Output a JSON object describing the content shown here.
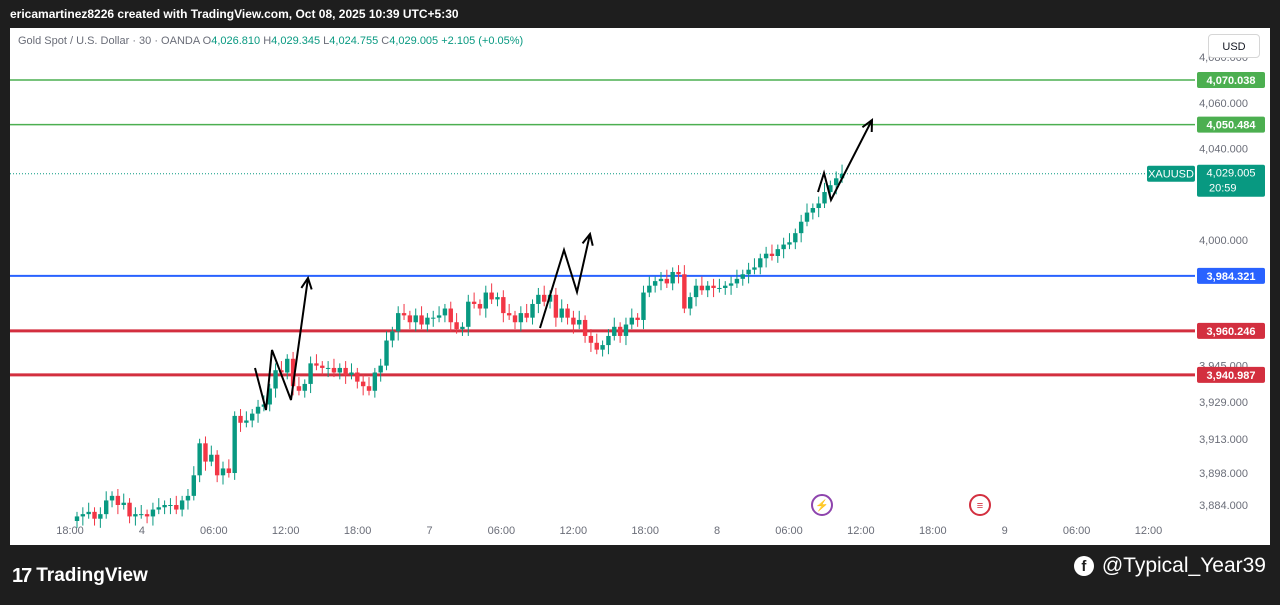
{
  "header": {
    "caption": "ericamartinez8226 created with TradingView.com, Oct 08, 2025 10:39 UTC+5:30"
  },
  "legend": {
    "symbol": "Gold Spot / U.S. Dollar · 30 · OANDA",
    "o_label": "O",
    "o_value": "4,026.810",
    "h_label": "H",
    "h_value": "4,029.345",
    "l_label": "L",
    "l_value": "4,024.755",
    "c_label": "C",
    "c_value": "4,029.005",
    "change": "+2.105 (+0.05%)"
  },
  "currency_button": "USD",
  "footer": {
    "brand_mark": "17",
    "brand": "TradingView",
    "handle": "@Typical_Year39"
  },
  "colors": {
    "up": "#089981",
    "down": "#f23645",
    "green_line": "#4caf50",
    "blue_line": "#2962ff",
    "red_line": "#d32f3f",
    "price_line": "#089981"
  },
  "chart_data": {
    "type": "candlestick",
    "ylim": [
      3874,
      4084
    ],
    "y_ticks": [
      "3,884.000",
      "3,898.000",
      "3,913.000",
      "3,929.000",
      "3,945.000",
      "4,000.000",
      "4,040.000",
      "4,060.000",
      "4,080.000"
    ],
    "x_ticks": [
      "18:00",
      "4",
      "06:00",
      "12:00",
      "18:00",
      "7",
      "06:00",
      "12:00",
      "18:00",
      "8",
      "06:00",
      "12:00",
      "18:00",
      "9",
      "06:00",
      "12:00"
    ],
    "horizontal_levels": [
      {
        "price": 4070.038,
        "label": "4,070.038",
        "color": "#4caf50"
      },
      {
        "price": 4050.484,
        "label": "4,050.484",
        "color": "#4caf50"
      },
      {
        "price": 3984.321,
        "label": "3,984.321",
        "color": "#2962ff"
      },
      {
        "price": 3960.246,
        "label": "3,960.246",
        "color": "#d32f3f"
      },
      {
        "price": 3940.987,
        "label": "3,940.987",
        "color": "#d32f3f"
      }
    ],
    "current_price": {
      "symbol": "XAUUSD",
      "label": "4,029.005",
      "countdown": "20:59",
      "price": 4029.005
    },
    "events": [
      {
        "icon": "lightning-icon",
        "label_index": 10
      },
      {
        "icon": "us-flag-icon",
        "label_index": 12
      }
    ],
    "closes": [
      3879,
      3880,
      3881,
      3878,
      3880,
      3886,
      3888,
      3884,
      3885,
      3879,
      3880,
      3880,
      3879,
      3882,
      3883,
      3884,
      3884,
      3882,
      3886,
      3888,
      3897,
      3911,
      3903,
      3906,
      3897,
      3900,
      3898,
      3923,
      3920,
      3921,
      3924,
      3927,
      3928,
      3935,
      3943,
      3942,
      3948,
      3936,
      3934,
      3937,
      3946,
      3945,
      3944,
      3944,
      3942,
      3944,
      3941,
      3942,
      3938,
      3936,
      3934,
      3942,
      3945,
      3956,
      3960,
      3968,
      3967,
      3964,
      3967,
      3963,
      3966,
      3966,
      3967,
      3970,
      3964,
      3961,
      3962,
      3973,
      3972,
      3970,
      3977,
      3974,
      3975,
      3968,
      3967,
      3964,
      3968,
      3966,
      3972,
      3976,
      3973,
      3976,
      3966,
      3970,
      3966,
      3963,
      3965,
      3958,
      3955,
      3952,
      3954,
      3958,
      3962,
      3958,
      3963,
      3966,
      3965,
      3977,
      3980,
      3982,
      3983,
      3981,
      3986,
      3985,
      3970,
      3975,
      3980,
      3978,
      3980,
      3979,
      3979,
      3980,
      3981,
      3983,
      3985,
      3987,
      3988,
      3992,
      3994,
      3993,
      3996,
      3998,
      3999,
      4003,
      4008,
      4012,
      4014,
      4016,
      4021,
      4024,
      4027,
      4029
    ]
  }
}
